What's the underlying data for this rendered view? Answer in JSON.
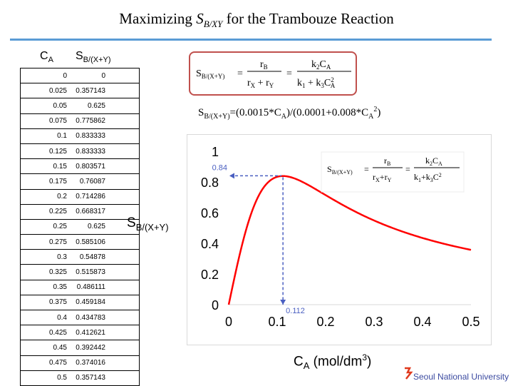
{
  "title": {
    "prefix": "Maximizing ",
    "symbol": "S",
    "sub": "B/XY",
    "suffix": " for the Trambouze Reaction"
  },
  "table": {
    "col1_head": "C",
    "col1_head_sub": "A",
    "col2_head": "S",
    "col2_head_sub": "B/(X+Y)",
    "rows": [
      [
        "0",
        "0"
      ],
      [
        "0.025",
        "0.357143"
      ],
      [
        "0.05",
        "0.625"
      ],
      [
        "0.075",
        "0.775862"
      ],
      [
        "0.1",
        "0.833333"
      ],
      [
        "0.125",
        "0.833333"
      ],
      [
        "0.15",
        "0.803571"
      ],
      [
        "0.175",
        "0.76087"
      ],
      [
        "0.2",
        "0.714286"
      ],
      [
        "0.225",
        "0.668317"
      ],
      [
        "0.25",
        "0.625"
      ],
      [
        "0.275",
        "0.585106"
      ],
      [
        "0.3",
        "0.54878"
      ],
      [
        "0.325",
        "0.515873"
      ],
      [
        "0.35",
        "0.486111"
      ],
      [
        "0.375",
        "0.459184"
      ],
      [
        "0.4",
        "0.434783"
      ],
      [
        "0.425",
        "0.412621"
      ],
      [
        "0.45",
        "0.392442"
      ],
      [
        "0.475",
        "0.374016"
      ],
      [
        "0.5",
        "0.357143"
      ]
    ]
  },
  "formula": {
    "lhs": "S",
    "lhs_sub": "B/(X+Y)",
    "eq": "=",
    "num1": "r",
    "num1_sub": "B",
    "den1a": "r",
    "den1a_sub": "X",
    "plus": "+",
    "den1b": "r",
    "den1b_sub": "Y",
    "num2": "k",
    "num2_sub": "2",
    "num2_c": "C",
    "num2_c_sub": "A",
    "den2a": "k",
    "den2a_sub": "1",
    "den2b": "k",
    "den2b_sub": "3",
    "den2c": "C",
    "den2c_sub": "A",
    "den2c_sup": "2"
  },
  "equation_text": {
    "lhs": "S",
    "lhs_sub": "B/(X+Y)",
    "part1": "=(0.0015*C",
    "part1_sub": "A",
    "part2": ")/(0.0001+0.008*C",
    "part2_sub": "A",
    "part2_sup": "2",
    "part3": ")"
  },
  "y_label": {
    "main": "S",
    "sub": "B/(X+Y)"
  },
  "x_label": {
    "main": "C",
    "sub": "A",
    "units": " (mol/dm",
    "units_sup": "3",
    "close": ")"
  },
  "footer": "Seoul National University",
  "colors": {
    "curve": "#ff0000",
    "guide": "#4a5fc1",
    "formula_border": "#c0504d",
    "rule": "#5b9bd5"
  },
  "chart_data": {
    "type": "line",
    "title": "",
    "xlabel": "CA (mol/dm3)",
    "ylabel": "SB/(X+Y)",
    "xlim": [
      0,
      0.5
    ],
    "ylim": [
      0,
      1
    ],
    "x_ticks": [
      "0",
      "0.1",
      "0.2",
      "0.3",
      "0.4",
      "0.5"
    ],
    "y_ticks": [
      "0",
      "0.2",
      "0.4",
      "0.6",
      "0.8",
      "1"
    ],
    "series": [
      {
        "name": "SB/(X+Y)",
        "x": [
          0,
          0.025,
          0.05,
          0.075,
          0.1,
          0.125,
          0.15,
          0.175,
          0.2,
          0.225,
          0.25,
          0.275,
          0.3,
          0.325,
          0.35,
          0.375,
          0.4,
          0.425,
          0.45,
          0.475,
          0.5
        ],
        "values": [
          0,
          0.357143,
          0.625,
          0.775862,
          0.833333,
          0.833333,
          0.803571,
          0.76087,
          0.714286,
          0.668317,
          0.625,
          0.585106,
          0.54878,
          0.515873,
          0.486111,
          0.459184,
          0.434783,
          0.412621,
          0.392442,
          0.374016,
          0.357143
        ]
      }
    ],
    "annotations": [
      {
        "text": "0.84",
        "x": 0.112,
        "y": 0.84,
        "kind": "max-y"
      },
      {
        "text": "0.112",
        "x": 0.112,
        "y": 0,
        "kind": "max-x"
      }
    ],
    "grid": false
  }
}
